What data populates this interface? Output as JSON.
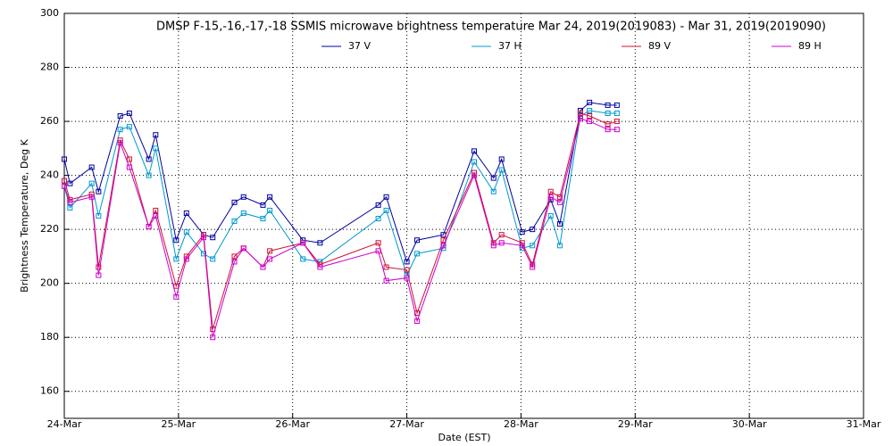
{
  "chart_data": {
    "type": "line",
    "title": "DMSP F-15,-16,-17,-18 SSMIS microwave brightness temperature Mar 24, 2019(2019083) - Mar 31, 2019(2019090)",
    "x_label": "Date (EST)",
    "y_label": "Brightness Temperature, Deg K",
    "x": [
      0,
      0.05,
      0.24,
      0.3,
      0.49,
      0.57,
      0.74,
      0.8,
      0.98,
      1.07,
      1.22,
      1.3,
      1.49,
      1.57,
      1.74,
      1.8,
      2.09,
      2.24,
      2.75,
      2.82,
      3.0,
      3.09,
      3.32,
      3.59,
      3.76,
      3.83,
      4.01,
      4.1,
      4.26,
      4.34,
      4.52,
      4.6,
      4.76,
      4.84
    ],
    "series": [
      {
        "name": "37 V",
        "color": "#0000a0",
        "values": [
          246,
          237,
          243,
          234,
          262,
          263,
          246,
          255,
          216,
          226,
          218,
          217,
          230,
          232,
          229,
          232,
          216,
          215,
          229,
          232,
          208,
          216,
          218,
          249,
          239,
          246,
          219,
          220,
          231,
          222,
          264,
          267,
          266,
          266
        ]
      },
      {
        "name": "37 H",
        "color": "#0099cc",
        "values": [
          236,
          228,
          237,
          225,
          257,
          258,
          240,
          250,
          209,
          219,
          211,
          209,
          223,
          226,
          224,
          227,
          209,
          208,
          224,
          227,
          203,
          211,
          213,
          245,
          234,
          242,
          213,
          214,
          225,
          214,
          262,
          264,
          263,
          263
        ]
      },
      {
        "name": "89 V",
        "color": "#d0103a",
        "values": [
          238,
          231,
          233,
          206,
          253,
          246,
          221,
          227,
          199,
          210,
          218,
          183,
          210,
          213,
          206,
          212,
          215,
          207,
          215,
          206,
          205,
          189,
          216,
          241,
          215,
          218,
          215,
          207,
          234,
          232,
          263,
          262,
          259,
          260
        ]
      },
      {
        "name": "89 H",
        "color": "#cc00cc",
        "values": [
          236,
          230,
          232,
          203,
          252,
          243,
          221,
          225,
          195,
          209,
          217,
          180,
          208,
          213,
          206,
          209,
          215,
          206,
          212,
          201,
          202,
          186,
          214,
          240,
          214,
          215,
          214,
          206,
          232,
          230,
          261,
          260,
          257,
          257
        ]
      }
    ],
    "xlim": [
      0,
      7
    ],
    "xticks": [
      {
        "value": 0,
        "label": "24-Mar"
      },
      {
        "value": 1,
        "label": "25-Mar"
      },
      {
        "value": 2,
        "label": "26-Mar"
      },
      {
        "value": 3,
        "label": "27-Mar"
      },
      {
        "value": 4,
        "label": "28-Mar"
      },
      {
        "value": 5,
        "label": "29-Mar"
      },
      {
        "value": 6,
        "label": "30-Mar"
      },
      {
        "value": 7,
        "label": "31-Mar"
      }
    ],
    "ylim": [
      150,
      300
    ],
    "yticks": [
      160,
      180,
      200,
      220,
      240,
      260,
      280,
      300
    ],
    "grid": true
  }
}
